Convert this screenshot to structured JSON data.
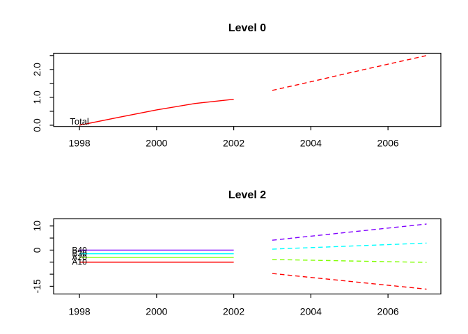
{
  "figure": {
    "background": "#ffffff",
    "frame_color": "#000000",
    "text_color": "#000000"
  },
  "chart_data": [
    {
      "type": "line",
      "title": "Level 0",
      "xlabel": "",
      "ylabel": "",
      "xlim": [
        1997.33,
        2007.37
      ],
      "ylim": [
        -0.043,
        2.583
      ],
      "grid": "off",
      "legend": "none",
      "x_ticks": [
        {
          "v": 1998,
          "label": "1998"
        },
        {
          "v": 2000,
          "label": "2000"
        },
        {
          "v": 2002,
          "label": "2002"
        },
        {
          "v": 2004,
          "label": "2004"
        },
        {
          "v": 2006,
          "label": "2006"
        }
      ],
      "y_ticks": [
        {
          "v": 0.0,
          "label": "0.0"
        },
        {
          "v": 0.5,
          "label": ""
        },
        {
          "v": 1.0,
          "label": "1.0"
        },
        {
          "v": 1.5,
          "label": ""
        },
        {
          "v": 2.0,
          "label": "2.0"
        },
        {
          "v": 2.5,
          "label": ""
        }
      ],
      "series": [
        {
          "name": "Total",
          "label": "Total",
          "color": "#ff0000",
          "observed": {
            "x": [
              1998,
              1999,
              2000,
              2001,
              2002
            ],
            "y": [
              0.0,
              0.28,
              0.55,
              0.78,
              0.93
            ]
          },
          "forecast": {
            "x": [
              2003,
              2004,
              2005,
              2006,
              2007
            ],
            "y": [
              1.25,
              1.56,
              1.88,
              2.19,
              2.5
            ]
          }
        }
      ]
    },
    {
      "type": "line",
      "title": "Level 2",
      "xlabel": "",
      "ylabel": "",
      "xlim": [
        1997.33,
        2007.37
      ],
      "ylim": [
        -18.2,
        12.96
      ],
      "grid": "off",
      "legend": "none",
      "x_ticks": [
        {
          "v": 1998,
          "label": "1998"
        },
        {
          "v": 2000,
          "label": "2000"
        },
        {
          "v": 2002,
          "label": "2002"
        },
        {
          "v": 2004,
          "label": "2004"
        },
        {
          "v": 2006,
          "label": "2006"
        }
      ],
      "y_ticks": [
        {
          "v": 10,
          "label": "10"
        },
        {
          "v": 5,
          "label": ""
        },
        {
          "v": 0,
          "label": "0"
        },
        {
          "v": -5,
          "label": ""
        },
        {
          "v": -10,
          "label": ""
        },
        {
          "v": -15,
          "label": "-15"
        }
      ],
      "series": [
        {
          "name": "A10",
          "label": "A10",
          "color": "#ff0000",
          "observed": {
            "x": [
              1998,
              1999,
              2000,
              2001,
              2002
            ],
            "y": [
              -5.0,
              -5.0,
              -5.0,
              -5.0,
              -5.0
            ]
          },
          "forecast": {
            "x": [
              2003,
              2004,
              2005,
              2006,
              2007
            ],
            "y": [
              -9.7,
              -11.33,
              -12.95,
              -14.58,
              -16.2
            ]
          }
        },
        {
          "name": "A20",
          "label": "A20",
          "color": "#80ff00",
          "observed": {
            "x": [
              1998,
              1999,
              2000,
              2001,
              2002
            ],
            "y": [
              -3.0,
              -3.0,
              -3.0,
              -3.0,
              -3.0
            ]
          },
          "forecast": {
            "x": [
              2003,
              2004,
              2005,
              2006,
              2007
            ],
            "y": [
              -3.9,
              -4.2,
              -4.5,
              -4.8,
              -5.1
            ]
          }
        },
        {
          "name": "B30",
          "label": "B30",
          "color": "#00ffff",
          "observed": {
            "x": [
              1998,
              1999,
              2000,
              2001,
              2002
            ],
            "y": [
              -1.5,
              -1.5,
              -1.5,
              -1.5,
              -1.5
            ]
          },
          "forecast": {
            "x": [
              2003,
              2004,
              2005,
              2006,
              2007
            ],
            "y": [
              0.4,
              1.03,
              1.65,
              2.28,
              2.9
            ]
          }
        },
        {
          "name": "B40",
          "label": "B40",
          "color": "#8000ff",
          "observed": {
            "x": [
              1998,
              1999,
              2000,
              2001,
              2002
            ],
            "y": [
              0.0,
              0.0,
              0.0,
              0.0,
              0.0
            ]
          },
          "forecast": {
            "x": [
              2003,
              2004,
              2005,
              2006,
              2007
            ],
            "y": [
              4.1,
              5.78,
              7.45,
              9.13,
              10.8
            ]
          }
        }
      ]
    }
  ]
}
